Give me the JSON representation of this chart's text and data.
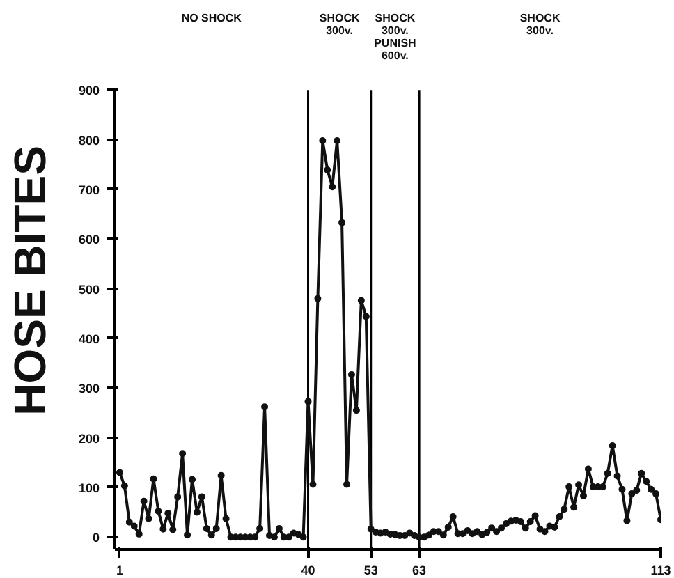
{
  "chart_data": {
    "type": "line",
    "ylabel": "HOSE BITES",
    "marker": "circle",
    "line_style": "solid",
    "annotations": [
      "NO SHOCK",
      "SHOCK\n300v.",
      "SHOCK\n300v.\nPUNISH\n600v.",
      "SHOCK\n300v."
    ],
    "ref_lines": [
      {
        "axis": "x",
        "value": 40,
        "label": null,
        "color": "#000000"
      },
      {
        "axis": "x",
        "value": 53,
        "label": null,
        "color": "#000000"
      },
      {
        "axis": "x",
        "value": 63,
        "label": null,
        "color": "#000000"
      }
    ],
    "xlim": [
      0,
      113
    ],
    "xticks": [
      1,
      40,
      53,
      63,
      113
    ],
    "ylim": [
      -25,
      900
    ],
    "yticks": [
      0,
      100,
      200,
      300,
      400,
      500,
      600,
      700,
      800,
      900
    ],
    "x": [
      1,
      2,
      3,
      4,
      5,
      6,
      7,
      8,
      9,
      10,
      11,
      12,
      13,
      14,
      15,
      16,
      17,
      18,
      19,
      20,
      21,
      22,
      23,
      24,
      25,
      26,
      27,
      28,
      29,
      30,
      31,
      32,
      33,
      34,
      35,
      36,
      37,
      38,
      39,
      40,
      41,
      42,
      43,
      44,
      45,
      46,
      47,
      48,
      49,
      50,
      51,
      52,
      53,
      54,
      55,
      56,
      57,
      58,
      59,
      60,
      61,
      62,
      63,
      64,
      65,
      66,
      67,
      68,
      69,
      70,
      71,
      72,
      73,
      74,
      75,
      76,
      77,
      78,
      79,
      80,
      81,
      82,
      83,
      84,
      85,
      86,
      87,
      88,
      89,
      90,
      91,
      92,
      93,
      94,
      95,
      96,
      97,
      98,
      99,
      100,
      101,
      102,
      103,
      104,
      105,
      106,
      107,
      108,
      109,
      110,
      111,
      112,
      113
    ],
    "series": [
      {
        "color": "#111111",
        "values": [
          130,
          103,
          30,
          22,
          6,
          72,
          37,
          117,
          52,
          16,
          48,
          15,
          81,
          168,
          4,
          116,
          50,
          81,
          17,
          4,
          17,
          124,
          37,
          0,
          0,
          0,
          0,
          0,
          0,
          17,
          262,
          3,
          0,
          17,
          0,
          0,
          8,
          5,
          0,
          273,
          106,
          480,
          798,
          739,
          705,
          798,
          633,
          106,
          327,
          255,
          476,
          444,
          16,
          10,
          8,
          10,
          6,
          5,
          3,
          3,
          8,
          3,
          0,
          0,
          4,
          11,
          11,
          4,
          20,
          41,
          7,
          7,
          13,
          7,
          11,
          5,
          9,
          18,
          11,
          18,
          27,
          32,
          34,
          31,
          18,
          31,
          43,
          16,
          11,
          22,
          20,
          41,
          56,
          101,
          60,
          105,
          83,
          137,
          101,
          101,
          101,
          128,
          184,
          123,
          96,
          33,
          87,
          94,
          128,
          112,
          96,
          87,
          35
        ]
      }
    ]
  }
}
